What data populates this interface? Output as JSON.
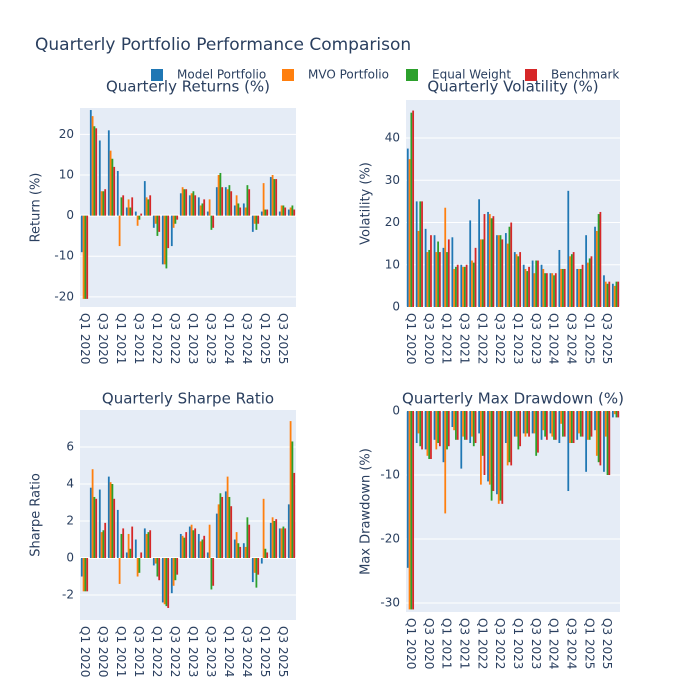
{
  "title": "Quarterly Portfolio Performance Comparison",
  "chart_data": [
    {
      "type": "bar",
      "title": "Quarterly Returns (%)",
      "y_label": "Return (%)",
      "categories": [
        "Q1 2020",
        null,
        "Q3 2020",
        null,
        "Q1 2021",
        null,
        "Q3 2021",
        null,
        "Q1 2022",
        null,
        "Q3 2022",
        null,
        "Q1 2023",
        null,
        "Q3 2023",
        null,
        "Q1 2024",
        null,
        "Q3 2024",
        null,
        "Q1 2025",
        null,
        "Q3 2025",
        null
      ],
      "ylim": [
        -22.5,
        26.5
      ],
      "yticks": [
        -20,
        -10,
        0,
        10,
        20
      ],
      "grid": true,
      "series": [
        {
          "name": "Model Portfolio",
          "color": "#1f77b4",
          "values": [
            -9,
            26,
            18.5,
            21,
            11,
            2,
            1,
            8.5,
            -3,
            -12,
            -7.5,
            5.5,
            5,
            4.5,
            1,
            7,
            7,
            2.5,
            3,
            -4,
            1,
            9.5,
            1,
            1.5
          ]
        },
        {
          "name": "MVO Portfolio",
          "color": "#ff7f0e",
          "values": [
            -20.5,
            24.5,
            6,
            16,
            -7.5,
            4,
            -2.5,
            4.5,
            -2,
            -12,
            -3,
            7,
            5.5,
            2.5,
            4,
            10,
            6.5,
            5,
            2,
            -2,
            8,
            10,
            2.5,
            2
          ]
        },
        {
          "name": "Equal Weight",
          "color": "#2ca02c",
          "values": [
            -20.5,
            22,
            6,
            14,
            4.5,
            2,
            -1,
            4,
            -5,
            -13,
            -2,
            6.5,
            6,
            3,
            -3.5,
            10.5,
            7.5,
            3,
            7.5,
            -3.5,
            1.5,
            9,
            2.5,
            2.5
          ]
        },
        {
          "name": "Benchmark",
          "color": "#d62728",
          "values": [
            -20.5,
            21.5,
            6.5,
            12,
            5,
            4.5,
            0.5,
            5,
            -4,
            -8,
            -1,
            6.5,
            5,
            4,
            -3,
            7,
            6,
            2,
            6.5,
            -2,
            1.5,
            9,
            2,
            1.5
          ]
        }
      ]
    },
    {
      "type": "bar",
      "title": "Quarterly Volatility (%)",
      "y_label": "Volatility (%)",
      "categories": [
        "Q1 2020",
        null,
        "Q3 2020",
        null,
        "Q1 2021",
        null,
        "Q3 2021",
        null,
        "Q1 2022",
        null,
        "Q3 2022",
        null,
        "Q1 2023",
        null,
        "Q3 2023",
        null,
        "Q1 2024",
        null,
        "Q3 2024",
        null,
        "Q1 2025",
        null,
        "Q3 2025",
        null
      ],
      "ylim": [
        0,
        49
      ],
      "yticks": [
        0,
        10,
        20,
        30,
        40
      ],
      "grid": true,
      "series": [
        {
          "name": "Model Portfolio",
          "color": "#1f77b4",
          "values": [
            37.5,
            25,
            18.5,
            17,
            14,
            16.5,
            10,
            20.5,
            25.5,
            22.5,
            17,
            17.5,
            13,
            10,
            11,
            10,
            8,
            13.5,
            27.5,
            9,
            17,
            19,
            7.5,
            5.5
          ]
        },
        {
          "name": "MVO Portfolio",
          "color": "#ff7f0e",
          "values": [
            35,
            18,
            13,
            13,
            23.5,
            9,
            9.5,
            11,
            16,
            22,
            17,
            15,
            12.5,
            9,
            8,
            9,
            8,
            9,
            12,
            9,
            10.5,
            18,
            6,
            5
          ]
        },
        {
          "name": "Equal Weight",
          "color": "#2ca02c",
          "values": [
            46,
            25,
            13.5,
            15.5,
            13,
            9.5,
            9.5,
            10.5,
            16,
            21,
            17,
            19,
            12,
            8.5,
            11,
            8,
            7.5,
            9,
            12.5,
            9,
            11.5,
            22,
            5.5,
            6
          ]
        },
        {
          "name": "Benchmark",
          "color": "#d62728",
          "values": [
            46.5,
            25,
            17,
            13,
            16,
            10,
            10,
            14,
            22,
            21.5,
            16,
            20,
            13,
            9.5,
            11,
            8,
            8,
            9,
            13,
            10,
            12,
            22.5,
            6,
            6
          ]
        }
      ]
    },
    {
      "type": "bar",
      "title": "Quarterly Sharpe Ratio",
      "y_label": "Sharpe Ratio",
      "categories": [
        "Q1 2020",
        null,
        "Q3 2020",
        null,
        "Q1 2021",
        null,
        "Q3 2021",
        null,
        "Q1 2022",
        null,
        "Q3 2022",
        null,
        "Q1 2023",
        null,
        "Q3 2023",
        null,
        "Q1 2024",
        null,
        "Q3 2024",
        null,
        "Q1 2025",
        null,
        "Q3 2025",
        null
      ],
      "ylim": [
        -3.35,
        8
      ],
      "yticks": [
        -2,
        0,
        2,
        4,
        6
      ],
      "grid": true,
      "series": [
        {
          "name": "Model Portfolio",
          "color": "#1f77b4",
          "values": [
            -1,
            3.8,
            3.7,
            4.4,
            2.6,
            0.3,
            1.0,
            1.6,
            -0.4,
            -2.4,
            -1.9,
            1.3,
            1.7,
            1.3,
            0.3,
            2.4,
            3.6,
            1.0,
            0.8,
            -1.3,
            -0.3,
            1.9,
            1.6,
            2.9
          ]
        },
        {
          "name": "MVO Portfolio",
          "color": "#ff7f0e",
          "values": [
            -1.8,
            4.8,
            1.4,
            4.1,
            -1.4,
            1.3,
            -1.0,
            1.3,
            -0.3,
            -2.5,
            -1.5,
            1.2,
            1.8,
            0.9,
            1.8,
            2.9,
            4.4,
            1.4,
            0.6,
            -0.8,
            3.2,
            2.2,
            1.6,
            7.4
          ]
        },
        {
          "name": "Equal Weight",
          "color": "#2ca02c",
          "values": [
            -1.8,
            3.3,
            1.5,
            4.0,
            1.3,
            0.5,
            -0.8,
            1.4,
            -1.0,
            -2.6,
            -1.2,
            1.1,
            1.5,
            1.0,
            -1.7,
            3.5,
            3.3,
            0.8,
            2.2,
            -1.6,
            0.5,
            2.0,
            1.7,
            6.3
          ]
        },
        {
          "name": "Benchmark",
          "color": "#d62728",
          "values": [
            -1.8,
            3.2,
            1.9,
            3.2,
            1.6,
            1.7,
            0.3,
            1.5,
            -1.2,
            -2.7,
            -0.9,
            1.4,
            1.6,
            1.2,
            -1.5,
            3.3,
            2.8,
            0.6,
            1.8,
            -0.9,
            0.3,
            2.1,
            1.6,
            4.6
          ]
        }
      ]
    },
    {
      "type": "bar",
      "title": "Quarterly Max Drawdown (%)",
      "y_label": "Max Drawdown (%)",
      "categories": [
        "Q1 2020",
        null,
        "Q3 2020",
        null,
        "Q1 2021",
        null,
        "Q3 2021",
        null,
        "Q1 2022",
        null,
        "Q3 2022",
        null,
        "Q1 2023",
        null,
        "Q3 2023",
        null,
        "Q1 2024",
        null,
        "Q3 2024",
        null,
        "Q1 2025",
        null,
        "Q3 2025",
        null
      ],
      "ylim": [
        -31.4,
        0
      ],
      "yticks": [
        -30,
        -20,
        -10,
        0
      ],
      "grid": true,
      "series": [
        {
          "name": "Model Portfolio",
          "color": "#1f77b4",
          "values": [
            -24.5,
            -5,
            -6,
            -4.5,
            -8,
            -2.5,
            -9,
            -5,
            -3.5,
            -11,
            -13,
            -5,
            -4,
            -3.5,
            -3.5,
            -4.5,
            -3.5,
            -5,
            -12.5,
            -4.5,
            -9.5,
            -3,
            -9.5,
            -1
          ]
        },
        {
          "name": "MVO Portfolio",
          "color": "#ff7f0e",
          "values": [
            -31,
            -3.5,
            -7,
            -6,
            -16,
            -3,
            -4,
            -4,
            -11.5,
            -11.5,
            -14.5,
            -8.5,
            -4,
            -4,
            -3.5,
            -3,
            -4,
            -2,
            -5,
            -3.5,
            -4.5,
            -7,
            -4,
            -0.5
          ]
        },
        {
          "name": "Equal Weight",
          "color": "#2ca02c",
          "values": [
            -31,
            -5.5,
            -7.5,
            -5,
            -6,
            -4.5,
            -4.5,
            -5.5,
            -7,
            -14,
            -14,
            -8,
            -6,
            -3.5,
            -7,
            -4,
            -4.5,
            -4,
            -5,
            -4,
            -4.5,
            -8,
            -10,
            -1
          ]
        },
        {
          "name": "Benchmark",
          "color": "#d62728",
          "values": [
            -31,
            -6,
            -7.5,
            -5.5,
            -5.5,
            -4.5,
            -4.5,
            -5,
            -10,
            -12.5,
            -14.5,
            -8.5,
            -5.5,
            -4,
            -6.5,
            -4.5,
            -4.5,
            -4,
            -5,
            -4,
            -4,
            -8.5,
            -10,
            -1
          ]
        }
      ]
    }
  ]
}
